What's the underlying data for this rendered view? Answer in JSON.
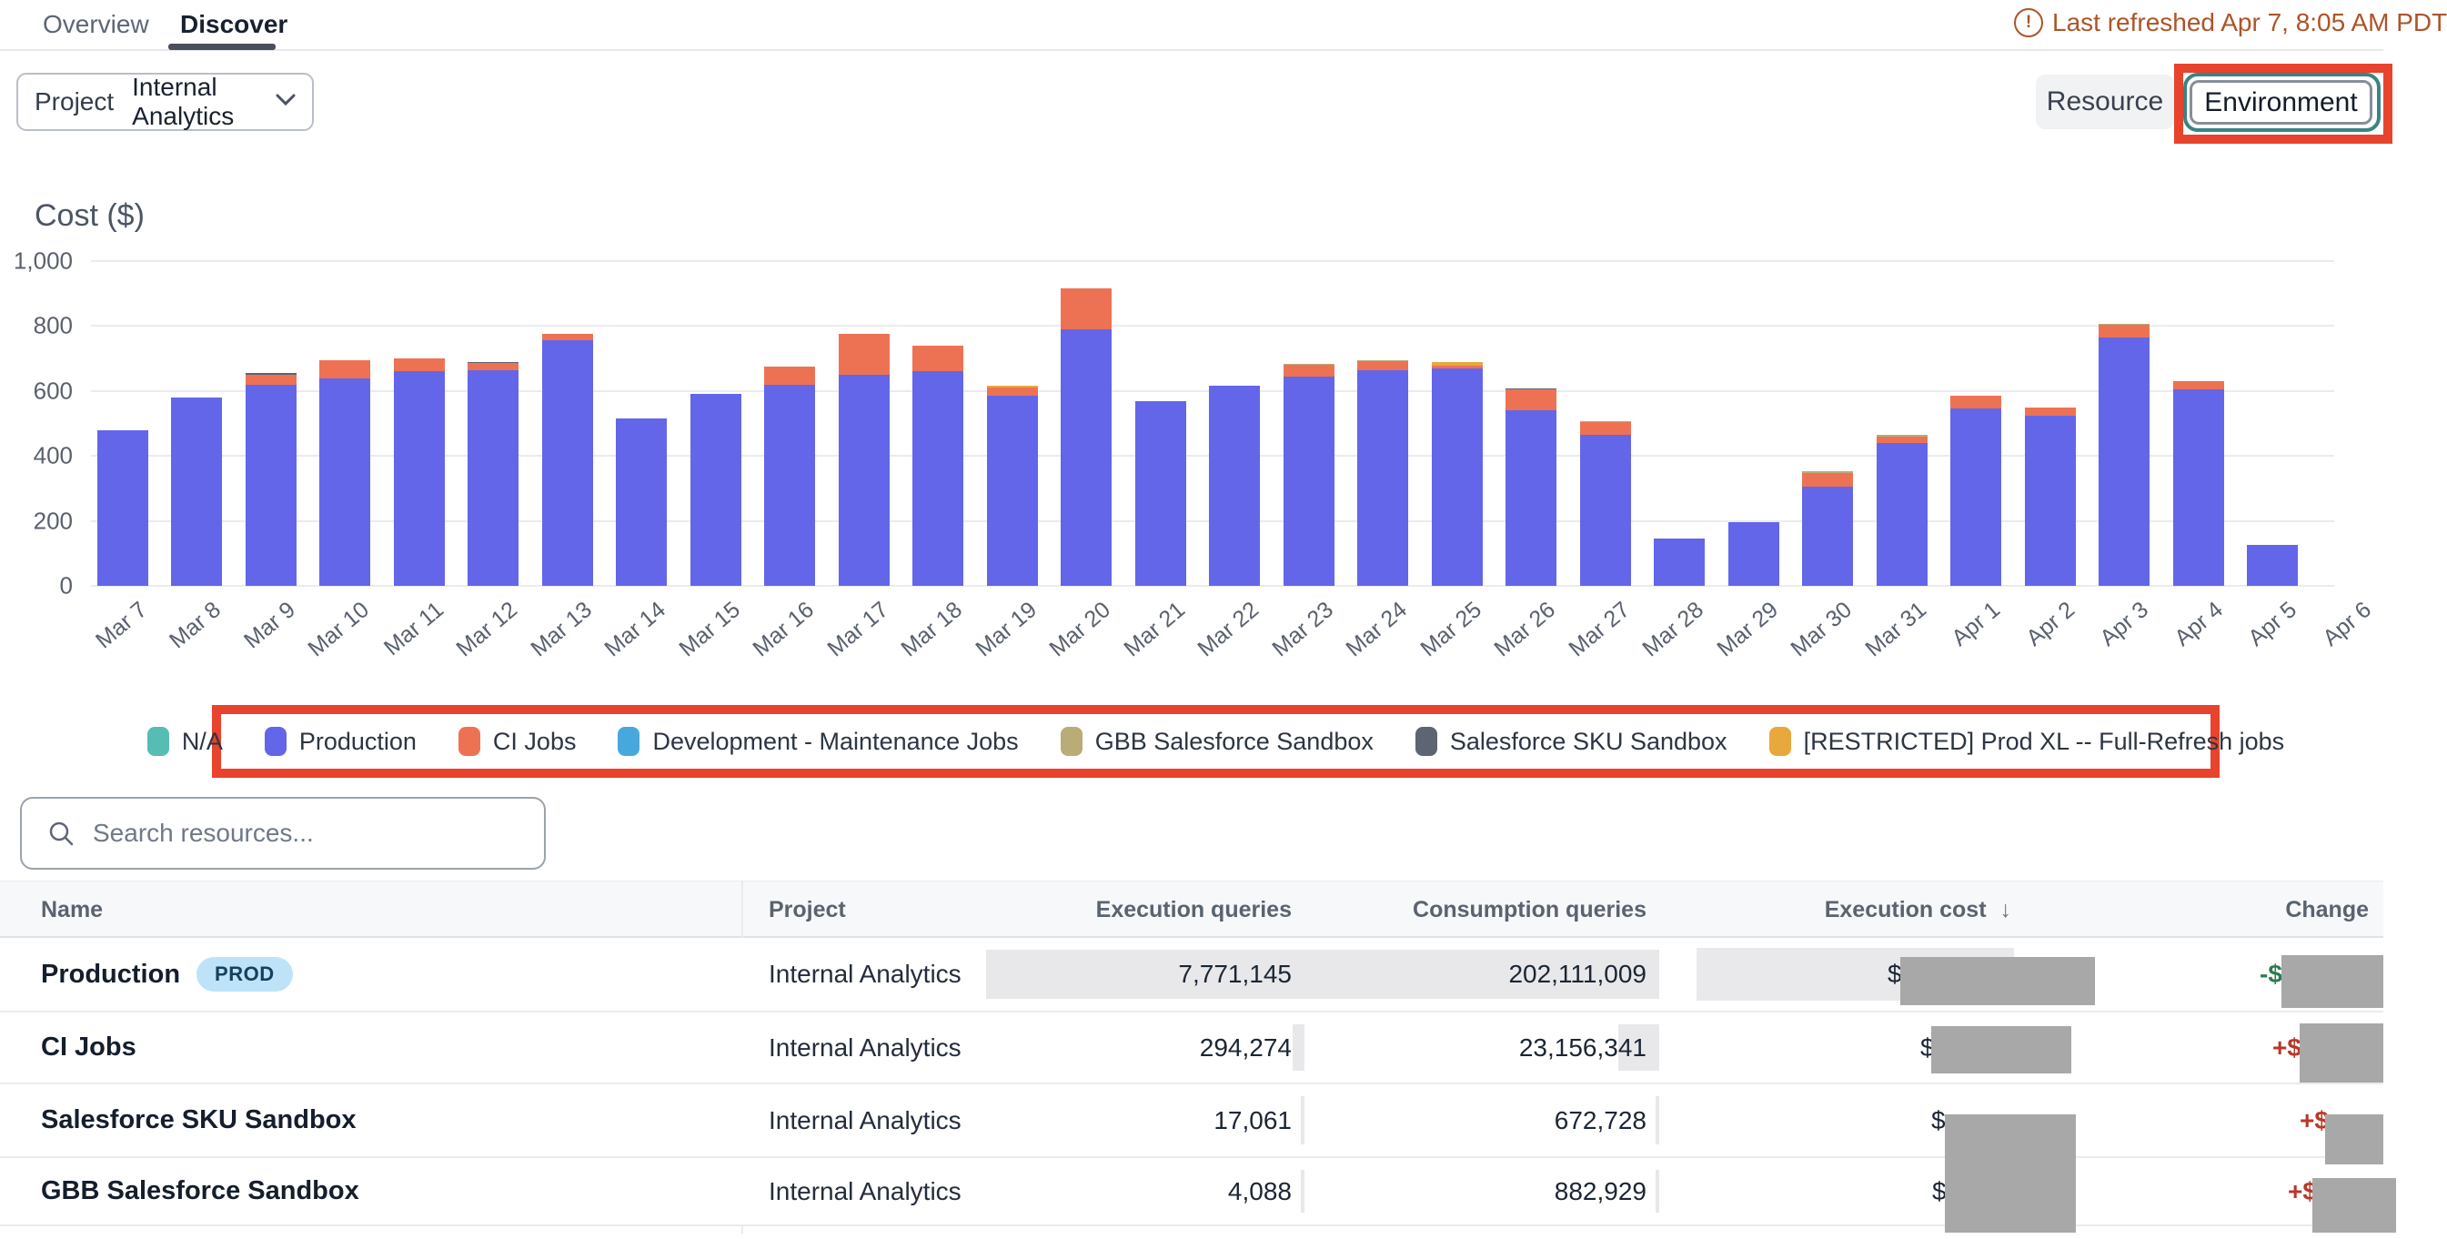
{
  "tabs": {
    "overview": "Overview",
    "discover": "Discover"
  },
  "header": {
    "last_refreshed": "Last refreshed Apr 7, 8:05 AM PDT",
    "warning_icon": "!"
  },
  "toolbar": {
    "project_label": "Project",
    "project_value": "Internal Analytics",
    "resource_label": "Resource",
    "environment_label": "Environment"
  },
  "chart_data": {
    "type": "bar",
    "stacked": true,
    "title": "Cost ($)",
    "ylabel": "Cost ($)",
    "xlabel": "",
    "ylim": [
      0,
      1000
    ],
    "yticks": [
      0,
      200,
      400,
      600,
      800,
      1000
    ],
    "ytick_labels": [
      "0",
      "200",
      "400",
      "600",
      "800",
      "1,000"
    ],
    "grid": true,
    "legend_position": "bottom",
    "categories": [
      "Mar 7",
      "Mar 8",
      "Mar 9",
      "Mar 10",
      "Mar 11",
      "Mar 12",
      "Mar 13",
      "Mar 14",
      "Mar 15",
      "Mar 16",
      "Mar 17",
      "Mar 18",
      "Mar 19",
      "Mar 20",
      "Mar 21",
      "Mar 22",
      "Mar 23",
      "Mar 24",
      "Mar 25",
      "Mar 26",
      "Mar 27",
      "Mar 28",
      "Mar 29",
      "Mar 30",
      "Mar 31",
      "Apr 1",
      "Apr 2",
      "Apr 3",
      "Apr 4",
      "Apr 5",
      "Apr 6"
    ],
    "series": [
      {
        "name": "Production",
        "color": "#6366e8",
        "values": [
          480,
          580,
          620,
          640,
          660,
          665,
          755,
          515,
          590,
          620,
          650,
          660,
          585,
          790,
          570,
          615,
          645,
          665,
          670,
          540,
          465,
          145,
          195,
          305,
          440,
          545,
          525,
          765,
          605,
          125,
          0
        ]
      },
      {
        "name": "CI Jobs",
        "color": "#ed7254",
        "values": [
          0,
          0,
          30,
          55,
          40,
          20,
          20,
          0,
          0,
          55,
          125,
          80,
          25,
          125,
          0,
          0,
          35,
          28,
          8,
          65,
          40,
          0,
          0,
          43,
          20,
          40,
          25,
          38,
          25,
          0,
          0
        ]
      },
      {
        "name": "Salesforce SKU Sandbox",
        "color": "#5d6472",
        "values": [
          0,
          0,
          6,
          0,
          0,
          5,
          0,
          0,
          0,
          0,
          0,
          0,
          0,
          0,
          0,
          0,
          0,
          0,
          0,
          4,
          0,
          0,
          0,
          0,
          0,
          0,
          0,
          0,
          0,
          0,
          0
        ]
      },
      {
        "name": "GBB Salesforce Sandbox",
        "color": "#b9ac76",
        "values": [
          0,
          0,
          0,
          0,
          0,
          0,
          0,
          0,
          0,
          0,
          0,
          0,
          0,
          0,
          0,
          0,
          3,
          3,
          0,
          0,
          3,
          0,
          0,
          4,
          4,
          0,
          0,
          4,
          0,
          0,
          0
        ]
      },
      {
        "name": "[RESTRICTED] Prod XL -- Full-Refresh jobs",
        "color": "#e9a83c",
        "values": [
          0,
          0,
          0,
          0,
          0,
          0,
          0,
          0,
          0,
          0,
          0,
          0,
          6,
          0,
          0,
          0,
          0,
          0,
          12,
          0,
          0,
          0,
          0,
          0,
          0,
          0,
          0,
          0,
          0,
          0,
          0
        ]
      }
    ]
  },
  "legend": {
    "items": [
      {
        "label": "N/A",
        "color": "#56bdb4"
      },
      {
        "label": "Production",
        "color": "#6366e8"
      },
      {
        "label": "CI Jobs",
        "color": "#ed7254"
      },
      {
        "label": "Development - Maintenance Jobs",
        "color": "#47a8dd"
      },
      {
        "label": "GBB Salesforce Sandbox",
        "color": "#b9ac76"
      },
      {
        "label": "Salesforce SKU Sandbox",
        "color": "#5d6472"
      },
      {
        "label": "[RESTRICTED] Prod XL -- Full-Refresh jobs",
        "color": "#e9a83c"
      }
    ]
  },
  "search": {
    "placeholder": "Search resources..."
  },
  "table": {
    "headers": {
      "name": "Name",
      "project": "Project",
      "execution_queries": "Execution queries",
      "consumption_queries": "Consumption queries",
      "execution_cost": "Execution cost",
      "sort_arrow": "↓",
      "change": "Change"
    },
    "rows": [
      {
        "name": "Production",
        "badge": "PROD",
        "project": "Internal Analytics",
        "execution_queries": "7,771,145",
        "consumption_queries": "202,111,009",
        "execution_cost_prefix": "$",
        "change_prefix": "-$",
        "change_direction": "down"
      },
      {
        "name": "CI Jobs",
        "badge": "",
        "project": "Internal Analytics",
        "execution_queries": "294,274",
        "consumption_queries": "23,156,341",
        "execution_cost_prefix": "$",
        "change_prefix": "+$",
        "change_direction": "up"
      },
      {
        "name": "Salesforce SKU Sandbox",
        "badge": "",
        "project": "Internal Analytics",
        "execution_queries": "17,061",
        "consumption_queries": "672,728",
        "execution_cost_prefix": "$",
        "change_prefix": "+$",
        "change_direction": "up"
      },
      {
        "name": "GBB Salesforce Sandbox",
        "badge": "",
        "project": "Internal Analytics",
        "execution_queries": "4,088",
        "consumption_queries": "882,929",
        "execution_cost_prefix": "$",
        "change_prefix": "+$",
        "change_direction": "up"
      }
    ]
  },
  "colors": {
    "annotation_red": "#e8432c",
    "selected_ring_teal": "#3a8485",
    "refresh_warning": "#ad5428",
    "change_positive_red": "#b6392a",
    "change_negative_green": "#2e7b4f",
    "redaction_gray": "#a8a8a8",
    "highlight_cell": "#e9e9ec",
    "badge_blue": "#bee3f8"
  }
}
